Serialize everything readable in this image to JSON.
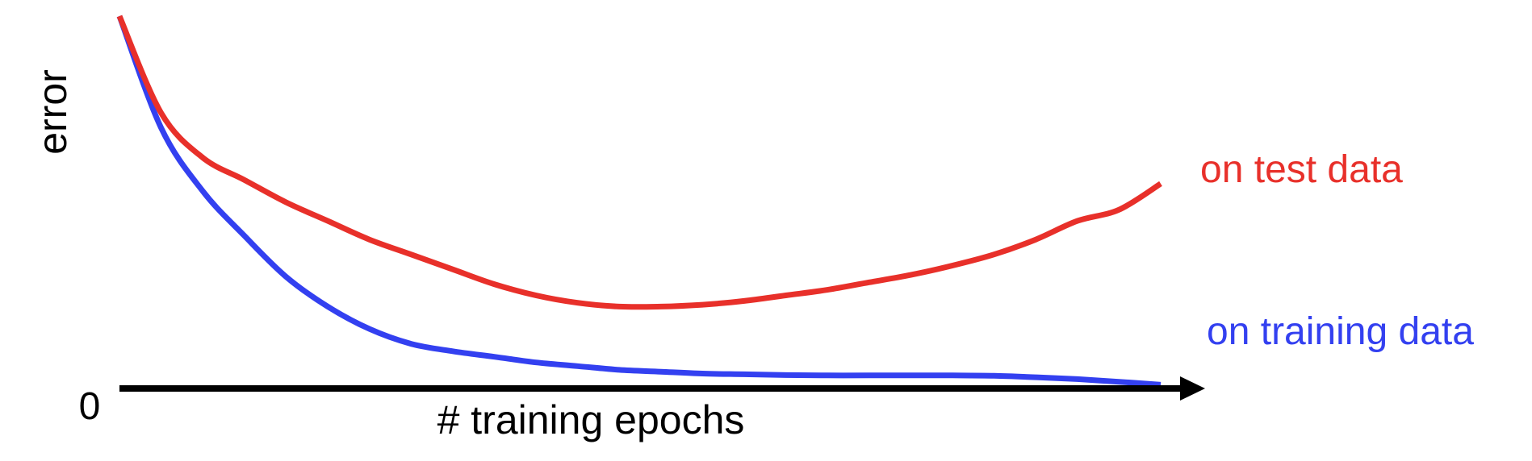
{
  "chart_data": {
    "type": "line",
    "title": "",
    "xlabel": "# training epochs",
    "ylabel": "error",
    "y_tick_labels": [
      "0"
    ],
    "grid": false,
    "legend": "direct labels at line ends",
    "x": [
      0,
      2,
      4,
      6,
      8,
      10,
      12,
      14,
      16,
      18,
      20,
      22,
      24,
      26,
      28,
      30,
      32,
      34,
      36,
      38,
      40,
      42,
      44,
      46,
      48,
      50
    ],
    "series": [
      {
        "name": "on test data",
        "color": "#e8302a",
        "values": [
          10.0,
          7.4,
          6.2,
          5.6,
          5.0,
          4.5,
          4.0,
          3.6,
          3.2,
          2.8,
          2.5,
          2.3,
          2.2,
          2.2,
          2.25,
          2.35,
          2.5,
          2.65,
          2.85,
          3.05,
          3.3,
          3.6,
          4.0,
          4.5,
          4.8,
          5.5
        ]
      },
      {
        "name": "on training data",
        "color": "#3340f0",
        "values": [
          10.0,
          7.0,
          5.3,
          4.1,
          3.0,
          2.2,
          1.6,
          1.2,
          1.0,
          0.85,
          0.7,
          0.6,
          0.5,
          0.45,
          0.4,
          0.38,
          0.36,
          0.35,
          0.35,
          0.35,
          0.35,
          0.34,
          0.3,
          0.25,
          0.18,
          0.1
        ]
      }
    ],
    "xlim": [
      0,
      50
    ],
    "ylim": [
      0,
      10
    ]
  }
}
